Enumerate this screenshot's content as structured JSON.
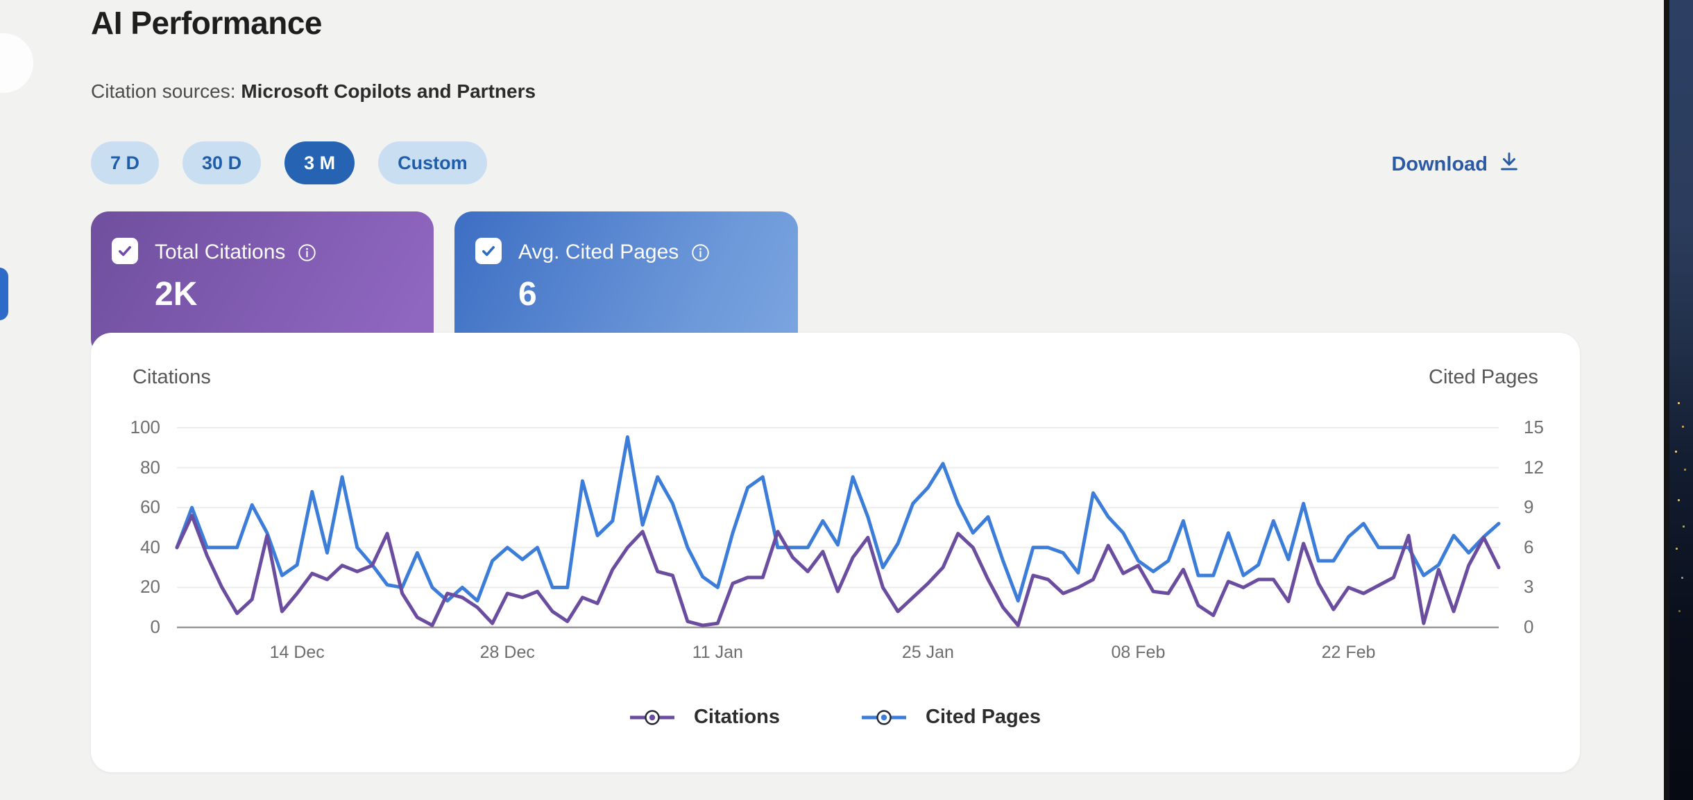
{
  "page": {
    "title": "AI Performance"
  },
  "sources": {
    "label": "Citation sources:",
    "value": "Microsoft Copilots and Partners"
  },
  "ranges": {
    "items": [
      {
        "label": "7 D",
        "selected": false
      },
      {
        "label": "30 D",
        "selected": false
      },
      {
        "label": "3 M",
        "selected": true
      },
      {
        "label": "Custom",
        "selected": false
      }
    ]
  },
  "download": {
    "label": "Download",
    "icon": "download-icon"
  },
  "metric_cards": [
    {
      "label": "Total Citations",
      "value": "2K",
      "checked": true,
      "accent": "#6f4bab",
      "info_icon": "info-icon"
    },
    {
      "label": "Avg. Cited Pages",
      "value": "6",
      "checked": true,
      "accent": "#2e6cc0",
      "info_icon": "info-icon"
    }
  ],
  "chart_data": {
    "type": "line",
    "grid": true,
    "legend_position": "bottom",
    "left_axis": {
      "title": "Citations",
      "range": [
        0,
        100
      ],
      "ticks": [
        0,
        20,
        40,
        60,
        80,
        100
      ]
    },
    "right_axis": {
      "title": "Cited Pages",
      "range": [
        0,
        15
      ],
      "ticks": [
        0,
        3,
        6,
        9,
        12,
        15
      ]
    },
    "x_tick_labels": [
      "14 Dec",
      "28 Dec",
      "11 Jan",
      "25 Jan",
      "08 Feb",
      "22 Feb"
    ],
    "x_tick_indices": [
      8,
      22,
      36,
      50,
      64,
      78
    ],
    "series": [
      {
        "name": "Cited Pages",
        "axis": "right",
        "color": "#3b7dd8",
        "values": [
          6,
          9,
          6,
          6,
          6,
          9.2,
          7.1,
          3.9,
          4.7,
          10.2,
          5.6,
          11.3,
          6,
          4.7,
          3.2,
          3,
          5.6,
          3,
          2,
          3,
          2,
          5,
          6,
          5.1,
          6,
          3,
          3,
          11,
          6.9,
          8,
          14.3,
          7.7,
          11.3,
          9.3,
          6,
          3.8,
          3,
          7.1,
          10.5,
          11.3,
          6,
          6,
          6,
          8,
          6.2,
          11.3,
          8.3,
          4.5,
          6.3,
          9.3,
          10.5,
          12.3,
          9.3,
          7.1,
          8.3,
          5,
          2,
          6,
          6,
          5.6,
          4.1,
          10.1,
          8.3,
          7.1,
          5,
          4.2,
          5,
          8,
          3.9,
          3.9,
          7.1,
          3.9,
          4.7,
          8,
          5.1,
          9.3,
          5,
          5,
          6.8,
          7.8,
          6,
          6,
          6,
          3.9,
          4.7,
          6.9,
          5.6,
          6.8,
          7.8
        ]
      },
      {
        "name": "Citations",
        "axis": "left",
        "color": "#6b4d9f",
        "values": [
          40,
          56,
          36,
          20,
          7,
          14,
          46,
          8,
          17,
          27,
          24,
          31,
          28,
          31,
          47,
          17,
          5,
          1,
          17,
          15,
          10,
          2,
          17,
          15,
          18,
          8,
          3,
          15,
          12,
          29,
          40,
          48,
          28,
          26,
          3,
          1,
          2,
          22,
          25,
          25,
          48,
          35,
          28,
          38,
          18,
          35,
          45,
          20,
          8,
          15,
          22,
          30,
          47,
          40,
          24,
          10,
          1,
          26,
          24,
          17,
          20,
          24,
          41,
          27,
          31,
          18,
          17,
          29,
          11,
          6,
          23,
          20,
          24,
          24,
          13,
          42,
          22,
          9,
          20,
          17,
          21,
          25,
          46,
          2,
          29,
          8,
          31,
          45,
          30
        ]
      }
    ],
    "legend": [
      "Citations",
      "Cited Pages"
    ]
  }
}
